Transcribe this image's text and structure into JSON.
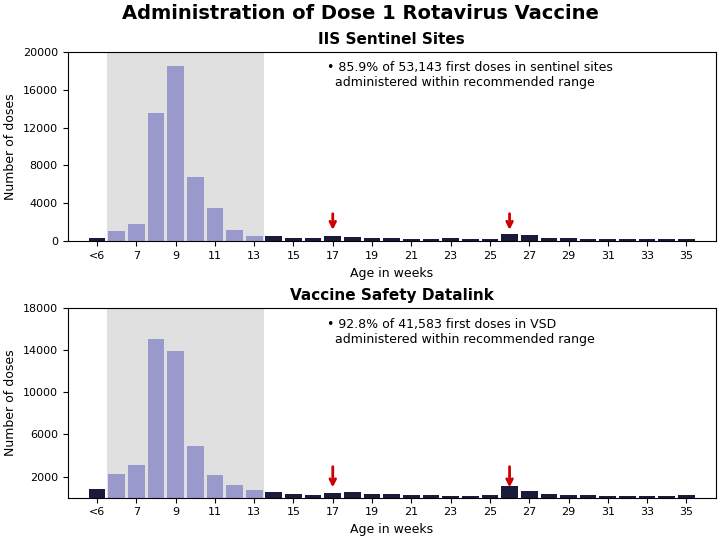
{
  "title": "Administration of Dose 1 Rotavirus Vaccine",
  "chart_data": [
    {
      "type": "bar",
      "title": "IIS Sentinel Sites",
      "x_label": "Age in weeks",
      "y_label": "Number of doses",
      "annotation": "• 85.9% of 53,143 first doses in sentinel sites\n  administered within recommended range",
      "x": [
        5,
        6,
        7,
        8,
        9,
        10,
        11,
        12,
        13,
        14,
        15,
        16,
        17,
        18,
        19,
        20,
        21,
        22,
        23,
        24,
        25,
        26,
        27,
        28,
        29,
        30,
        31,
        32,
        33,
        34,
        35
      ],
      "values": [
        350,
        1100,
        1800,
        13500,
        18500,
        6800,
        3500,
        1200,
        500,
        500,
        350,
        300,
        500,
        450,
        350,
        300,
        280,
        280,
        320,
        280,
        230,
        750,
        650,
        380,
        320,
        280,
        240,
        280,
        280,
        230,
        280
      ],
      "colors": [
        "#1a1a3a",
        "#9999cc",
        "#9999cc",
        "#9999cc",
        "#9999cc",
        "#9999cc",
        "#9999cc",
        "#9999cc",
        "#9999cc",
        "#1a1a3a",
        "#1a1a3a",
        "#1a1a3a",
        "#1a1a3a",
        "#1a1a3a",
        "#1a1a3a",
        "#1a1a3a",
        "#1a1a3a",
        "#1a1a3a",
        "#1a1a3a",
        "#1a1a3a",
        "#1a1a3a",
        "#1a1a3a",
        "#1a1a3a",
        "#1a1a3a",
        "#1a1a3a",
        "#1a1a3a",
        "#1a1a3a",
        "#1a1a3a",
        "#1a1a3a",
        "#1a1a3a",
        "#1a1a3a"
      ],
      "xlim": [
        3.5,
        36.5
      ],
      "xticks": [
        {
          "value": 5,
          "label": "<6"
        },
        7,
        9,
        11,
        13,
        15,
        17,
        19,
        21,
        23,
        25,
        27,
        29,
        31,
        33,
        35
      ],
      "ylim": [
        0,
        20000
      ],
      "yticks": [
        0,
        4000,
        8000,
        12000,
        16000,
        20000
      ],
      "shaded_range": {
        "start": 5.5,
        "end": 13.5,
        "color": "#e0e0e0"
      },
      "arrows": {
        "x": [
          17,
          26
        ],
        "y_start": 3200,
        "y_end": 900,
        "color": "#cc0000"
      },
      "grid": false
    },
    {
      "type": "bar",
      "title": "Vaccine Safety Datalink",
      "x_label": "Age in weeks",
      "y_label": "Number of doses",
      "annotation": "• 92.8% of 41,583 first doses in VSD\n  administered within recommended range",
      "x": [
        5,
        6,
        7,
        8,
        9,
        10,
        11,
        12,
        13,
        14,
        15,
        16,
        17,
        18,
        19,
        20,
        21,
        22,
        23,
        24,
        25,
        26,
        27,
        28,
        29,
        30,
        31,
        32,
        33,
        34,
        35
      ],
      "values": [
        800,
        2200,
        3100,
        15100,
        13900,
        4900,
        2100,
        1200,
        700,
        500,
        300,
        250,
        450,
        550,
        380,
        300,
        250,
        220,
        190,
        190,
        230,
        1100,
        650,
        300,
        220,
        270,
        180,
        140,
        180,
        180,
        270
      ],
      "colors": [
        "#1a1a3a",
        "#9999cc",
        "#9999cc",
        "#9999cc",
        "#9999cc",
        "#9999cc",
        "#9999cc",
        "#9999cc",
        "#9999cc",
        "#1a1a3a",
        "#1a1a3a",
        "#1a1a3a",
        "#1a1a3a",
        "#1a1a3a",
        "#1a1a3a",
        "#1a1a3a",
        "#1a1a3a",
        "#1a1a3a",
        "#1a1a3a",
        "#1a1a3a",
        "#1a1a3a",
        "#1a1a3a",
        "#1a1a3a",
        "#1a1a3a",
        "#1a1a3a",
        "#1a1a3a",
        "#1a1a3a",
        "#1a1a3a",
        "#1a1a3a",
        "#1a1a3a",
        "#1a1a3a"
      ],
      "xlim": [
        3.5,
        36.5
      ],
      "xticks": [
        {
          "value": 5,
          "label": "<6"
        },
        7,
        9,
        11,
        13,
        15,
        17,
        19,
        21,
        23,
        25,
        27,
        29,
        31,
        33,
        35
      ],
      "ylim": [
        0,
        18000
      ],
      "yticks": [
        2000,
        6000,
        10000,
        14000,
        18000
      ],
      "shaded_range": {
        "start": 5.5,
        "end": 13.5,
        "color": "#e0e0e0"
      },
      "arrows": {
        "x": [
          17,
          26
        ],
        "y_start": 3200,
        "y_end": 700,
        "color": "#cc0000"
      },
      "grid": false
    }
  ]
}
